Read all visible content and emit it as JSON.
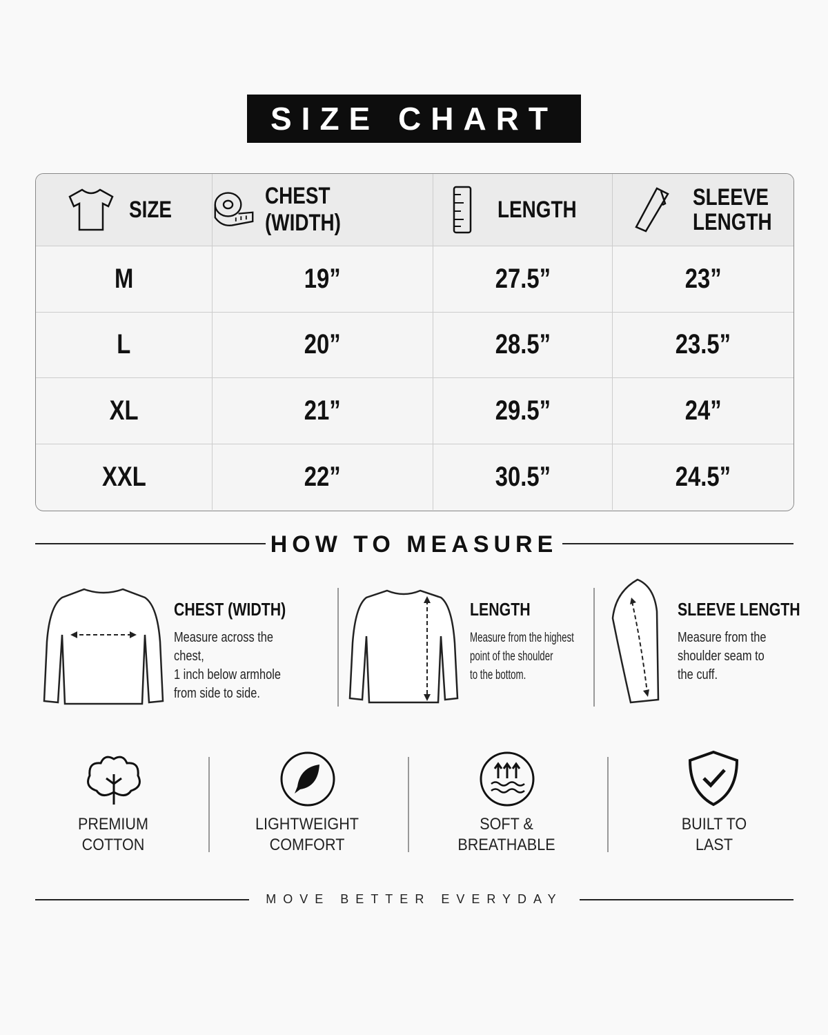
{
  "header": {
    "title": "SIZE CHART"
  },
  "table": {
    "headers": [
      "SIZE",
      "CHEST (WIDTH)",
      "LENGTH",
      "SLEEVE LENGTH"
    ],
    "rows": [
      [
        "M",
        "19”",
        "27.5”",
        "23”"
      ],
      [
        "L",
        "20”",
        "28.5”",
        "23.5”"
      ],
      [
        "XL",
        "21”",
        "29.5”",
        "24”"
      ],
      [
        "XXL",
        "22”",
        "30.5”",
        "24.5”"
      ]
    ]
  },
  "measure": {
    "title": "HOW TO MEASURE",
    "items": [
      {
        "title": "CHEST (WIDTH)",
        "lines": [
          "Measure across the chest,",
          "1 inch below armhole",
          "from side to side."
        ]
      },
      {
        "title": "LENGTH",
        "lines": [
          "Measure from the highest",
          "point of the shoulder",
          "to the bottom."
        ]
      },
      {
        "title": "SLEEVE LENGTH",
        "lines": [
          "Measure from the",
          "shoulder seam to",
          "the cuff."
        ]
      }
    ]
  },
  "features": [
    {
      "lines": [
        "PREMIUM",
        "COTTON"
      ]
    },
    {
      "lines": [
        "LIGHTWEIGHT",
        "COMFORT"
      ]
    },
    {
      "lines": [
        "SOFT &",
        "BREATHABLE"
      ]
    },
    {
      "lines": [
        "BUILT TO",
        "LAST"
      ]
    }
  ],
  "footer": {
    "tagline": "MOVE BETTER EVERYDAY"
  }
}
